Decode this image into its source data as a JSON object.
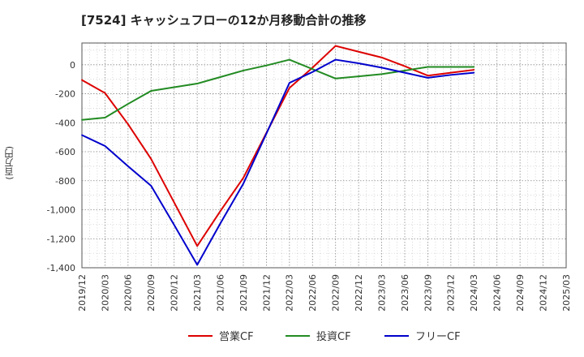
{
  "chart_data": {
    "type": "line",
    "title": "[7524]  キャッシュフローの12か月移動合計の推移",
    "ylabel": "(百万円)",
    "xlabel": "",
    "ylim": [
      -1400,
      150
    ],
    "y_ticks": [
      0,
      -200,
      -400,
      -600,
      -800,
      -1000,
      -1200,
      -1400
    ],
    "y_tick_labels": [
      "0",
      "-200",
      "-400",
      "-600",
      "-800",
      "-1,000",
      "-1,200",
      "-1,400"
    ],
    "x": [
      "2019/12",
      "2020/03",
      "2020/06",
      "2020/09",
      "2020/12",
      "2021/03",
      "2021/06",
      "2021/09",
      "2021/12",
      "2022/03",
      "2022/06",
      "2022/09",
      "2022/12",
      "2023/03",
      "2023/06",
      "2023/09",
      "2023/12",
      "2024/03",
      "2024/06",
      "2024/09",
      "2024/12",
      "2025/03"
    ],
    "grid": true,
    "legend_position": "bottom",
    "series": [
      {
        "name": "営業CF",
        "color": "#dd0000",
        "values": [
          -105,
          -195,
          -410,
          -650,
          -950,
          -1250,
          -1010,
          -780,
          -470,
          -160,
          -20,
          130,
          90,
          50,
          -10,
          -75,
          -55,
          -35,
          null,
          null,
          null,
          null
        ]
      },
      {
        "name": "投資CF",
        "color": "#228b22",
        "values": [
          -380,
          -365,
          -270,
          -180,
          -155,
          -130,
          -85,
          -40,
          -5,
          35,
          -30,
          -95,
          -80,
          -65,
          -40,
          -15,
          -15,
          -15,
          null,
          null,
          null,
          null
        ]
      },
      {
        "name": "フリーCF",
        "color": "#0000cc",
        "values": [
          -485,
          -560,
          -700,
          -835,
          -1105,
          -1380,
          -1095,
          -820,
          -475,
          -125,
          -50,
          35,
          10,
          -20,
          -55,
          -90,
          -70,
          -55,
          null,
          null,
          null,
          null
        ]
      }
    ]
  }
}
